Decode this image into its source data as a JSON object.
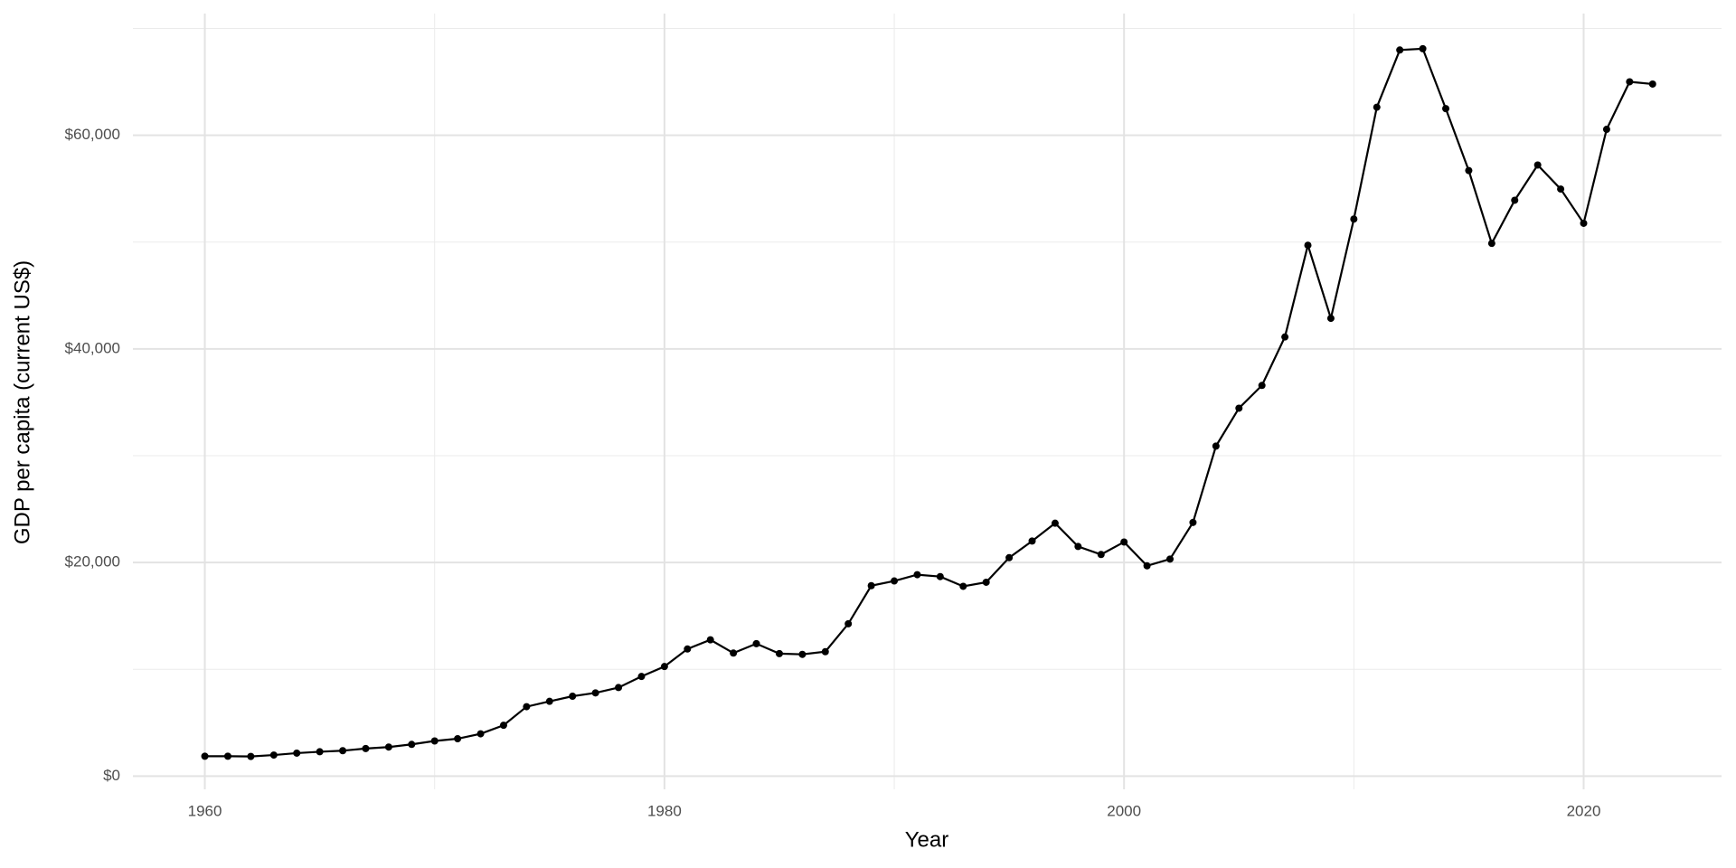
{
  "chart_data": {
    "type": "line",
    "x_label": "Year",
    "y_label": "GDP per capita (current US$)",
    "x": [
      1960,
      1961,
      1962,
      1963,
      1964,
      1965,
      1966,
      1967,
      1968,
      1969,
      1970,
      1971,
      1972,
      1973,
      1974,
      1975,
      1976,
      1977,
      1978,
      1979,
      1980,
      1981,
      1982,
      1983,
      1984,
      1985,
      1986,
      1987,
      1988,
      1989,
      1990,
      1991,
      1992,
      1993,
      1994,
      1995,
      1996,
      1997,
      1998,
      1999,
      2000,
      2001,
      2002,
      2003,
      2004,
      2005,
      2006,
      2007,
      2008,
      2009,
      2010,
      2011,
      2012,
      2013,
      2014,
      2015,
      2016,
      2017,
      2018,
      2019,
      2020,
      2021,
      2022,
      2023
    ],
    "series": [
      {
        "color": "#000000",
        "values": [
          1860,
          1860,
          1840,
          1970,
          2150,
          2280,
          2380,
          2580,
          2720,
          2970,
          3290,
          3500,
          3960,
          4760,
          6500,
          7000,
          7480,
          7790,
          8290,
          9330,
          10260,
          11900,
          12760,
          11520,
          12400,
          11470,
          11400,
          11650,
          14260,
          17830,
          18270,
          18860,
          18680,
          17770,
          18150,
          20450,
          22010,
          23680,
          21500,
          20750,
          21920,
          19690,
          20320,
          23750,
          30900,
          34450,
          36580,
          41120,
          49710,
          42860,
          52160,
          62630,
          67990,
          68110,
          62500,
          56700,
          49880,
          53920,
          57220,
          54970,
          51760,
          60560,
          65010,
          64800
        ]
      }
    ],
    "xlim": [
      1956.87,
      2026.0
    ],
    "xticks": [
      1960,
      1980,
      2000,
      2020
    ],
    "minor_xticks": [
      1970,
      1990,
      2010
    ],
    "ylim": [
      -1240,
      71400
    ],
    "yticks": [
      {
        "value": 0,
        "label": "$0"
      },
      {
        "value": 20000,
        "label": "$20,000"
      },
      {
        "value": 40000,
        "label": "$40,000"
      },
      {
        "value": 60000,
        "label": "$60,000"
      }
    ],
    "minor_yticks": [
      10000,
      30000,
      50000,
      70000
    ],
    "grid": true
  }
}
